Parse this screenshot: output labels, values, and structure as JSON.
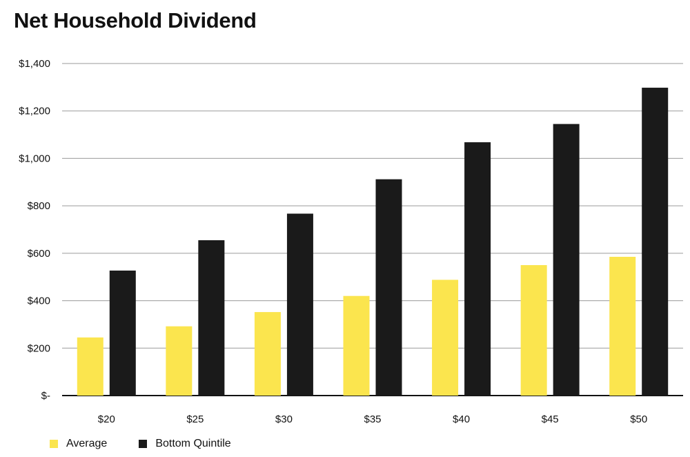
{
  "chart_data": {
    "type": "bar",
    "title": "Net Household Dividend",
    "xlabel": "",
    "ylabel": "",
    "categories": [
      "$20",
      "$25",
      "$30",
      "$35",
      "$40",
      "$45",
      "$50"
    ],
    "series": [
      {
        "name": "Average",
        "color": "#fbe54e",
        "values": [
          245,
          292,
          352,
          420,
          488,
          550,
          585
        ]
      },
      {
        "name": "Bottom Quintile",
        "color": "#1a1a1a",
        "values": [
          527,
          655,
          767,
          912,
          1068,
          1145,
          1298
        ]
      }
    ],
    "ylim": [
      0,
      1400
    ],
    "yticks": [
      0,
      200,
      400,
      600,
      800,
      1000,
      1200,
      1400
    ],
    "ytick_labels": [
      "$-",
      "$200",
      "$400",
      "$600",
      "$800",
      "$1,000",
      "$1,200",
      "$1,400"
    ],
    "grid": true,
    "legend_position": "bottom-left"
  }
}
